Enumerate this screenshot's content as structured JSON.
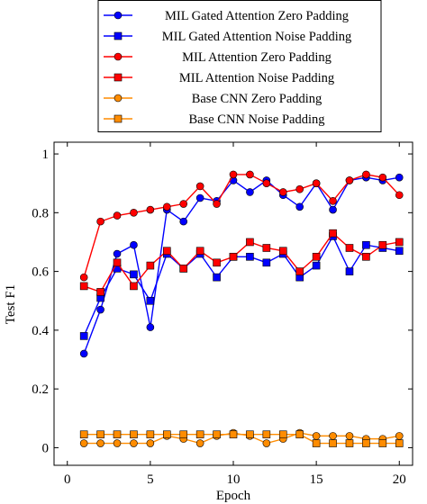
{
  "chart_data": {
    "type": "line",
    "title": "",
    "xlabel": "Epoch",
    "ylabel": "Test F1",
    "xlim": [
      -0.8,
      20.8
    ],
    "ylim": [
      -0.06,
      1.04
    ],
    "xticks": [
      0,
      5,
      10,
      15,
      20
    ],
    "yticks": [
      0,
      0.2,
      0.4,
      0.6,
      0.8,
      1
    ],
    "ytick_labels": [
      "0",
      "0.2",
      "0.4",
      "0.6",
      "0.8",
      "1"
    ],
    "grid": false,
    "legend_position": "top (above plot)",
    "x": [
      1,
      2,
      3,
      4,
      5,
      6,
      7,
      8,
      9,
      10,
      11,
      12,
      13,
      14,
      15,
      16,
      17,
      18,
      19,
      20
    ],
    "series": [
      {
        "name": "MIL Gated Attention Zero Padding",
        "color": "#0000ff",
        "marker": "circle",
        "values": [
          0.32,
          0.47,
          0.66,
          0.69,
          0.41,
          0.81,
          0.77,
          0.85,
          0.84,
          0.91,
          0.87,
          0.91,
          0.86,
          0.82,
          0.9,
          0.81,
          0.91,
          0.92,
          0.91,
          0.92
        ]
      },
      {
        "name": "MIL Gated Attention Noise Padding",
        "color": "#0000ff",
        "marker": "square",
        "values": [
          0.38,
          0.51,
          0.61,
          0.59,
          0.5,
          0.66,
          0.61,
          0.66,
          0.58,
          0.65,
          0.65,
          0.63,
          0.66,
          0.58,
          0.62,
          0.72,
          0.6,
          0.69,
          0.68,
          0.67
        ]
      },
      {
        "name": "MIL Attention Zero Padding",
        "color": "#ff0000",
        "marker": "circle",
        "values": [
          0.58,
          0.77,
          0.79,
          0.8,
          0.81,
          0.82,
          0.83,
          0.89,
          0.83,
          0.93,
          0.93,
          0.9,
          0.87,
          0.88,
          0.9,
          0.84,
          0.91,
          0.93,
          0.92,
          0.86
        ]
      },
      {
        "name": "MIL Attention Noise Padding",
        "color": "#ff0000",
        "marker": "square",
        "values": [
          0.55,
          0.53,
          0.63,
          0.55,
          0.62,
          0.67,
          0.61,
          0.67,
          0.63,
          0.65,
          0.7,
          0.68,
          0.67,
          0.6,
          0.65,
          0.73,
          0.68,
          0.65,
          0.69,
          0.7
        ]
      },
      {
        "name": "Base CNN Zero Padding",
        "color": "#ff8c00",
        "marker": "circle",
        "values": [
          0.015,
          0.015,
          0.015,
          0.015,
          0.015,
          0.04,
          0.03,
          0.015,
          0.04,
          0.05,
          0.04,
          0.015,
          0.03,
          0.05,
          0.04,
          0.04,
          0.04,
          0.03,
          0.03,
          0.04
        ]
      },
      {
        "name": "Base CNN Noise Padding",
        "color": "#ff8c00",
        "marker": "square",
        "values": [
          0.045,
          0.045,
          0.045,
          0.045,
          0.045,
          0.045,
          0.045,
          0.045,
          0.045,
          0.045,
          0.045,
          0.045,
          0.045,
          0.045,
          0.015,
          0.015,
          0.015,
          0.015,
          0.015,
          0.015
        ]
      }
    ]
  }
}
